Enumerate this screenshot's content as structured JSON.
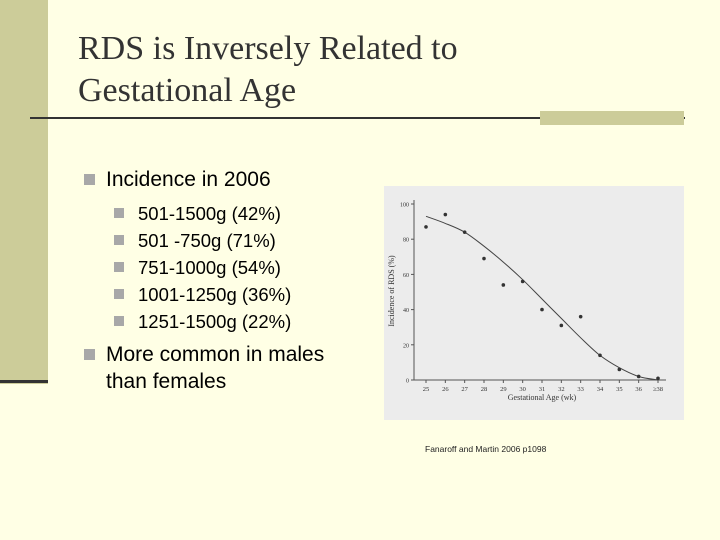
{
  "slide": {
    "title_line1": "RDS is Inversely Related to",
    "title_line2": "Gestational Age",
    "bullet_main": "Incidence in 2006",
    "sub_bullets": [
      "501-1500g (42%)",
      "501 -750g (71%)",
      "751-1000g (54%)",
      "1001-1250g (36%)",
      "1251-1500g (22%)"
    ],
    "bullet_second_line1": "More common in males",
    "bullet_second_line2": "than females",
    "citation": "Fanaroff and Martin 2006 p1098",
    "colors": {
      "background": "#ffffe5",
      "accent": "#cccc99",
      "bullet": "#a8a8a8"
    }
  },
  "chart_data": {
    "type": "scatter",
    "xlabel": "Gestational Age (wk)",
    "ylabel": "Incidence of RDS (%)",
    "categories": [
      "25",
      "26",
      "27",
      "28",
      "29",
      "30",
      "31",
      "32",
      "33",
      "34",
      "35",
      "36",
      "≥38"
    ],
    "ylim": [
      0,
      100
    ],
    "yticks": [
      "0",
      "20",
      "40",
      "60",
      "80",
      "100"
    ],
    "points": [
      {
        "x": "25",
        "y": 87
      },
      {
        "x": "26",
        "y": 94
      },
      {
        "x": "27",
        "y": 84
      },
      {
        "x": "28",
        "y": 69
      },
      {
        "x": "29",
        "y": 54
      },
      {
        "x": "30",
        "y": 56
      },
      {
        "x": "31",
        "y": 40
      },
      {
        "x": "32",
        "y": 31
      },
      {
        "x": "33",
        "y": 36
      },
      {
        "x": "34",
        "y": 14
      },
      {
        "x": "35",
        "y": 6
      },
      {
        "x": "36",
        "y": 2
      },
      {
        "x": "≥38",
        "y": 1
      }
    ],
    "trend": [
      {
        "x": "25",
        "y": 93
      },
      {
        "x": "26",
        "y": 89
      },
      {
        "x": "27",
        "y": 84
      },
      {
        "x": "28",
        "y": 76
      },
      {
        "x": "29",
        "y": 67
      },
      {
        "x": "30",
        "y": 57
      },
      {
        "x": "31",
        "y": 46
      },
      {
        "x": "32",
        "y": 35
      },
      {
        "x": "33",
        "y": 24
      },
      {
        "x": "34",
        "y": 14
      },
      {
        "x": "35",
        "y": 7
      },
      {
        "x": "36",
        "y": 2
      },
      {
        "x": "≥38",
        "y": 0
      }
    ],
    "grid": false,
    "legend": "none"
  }
}
